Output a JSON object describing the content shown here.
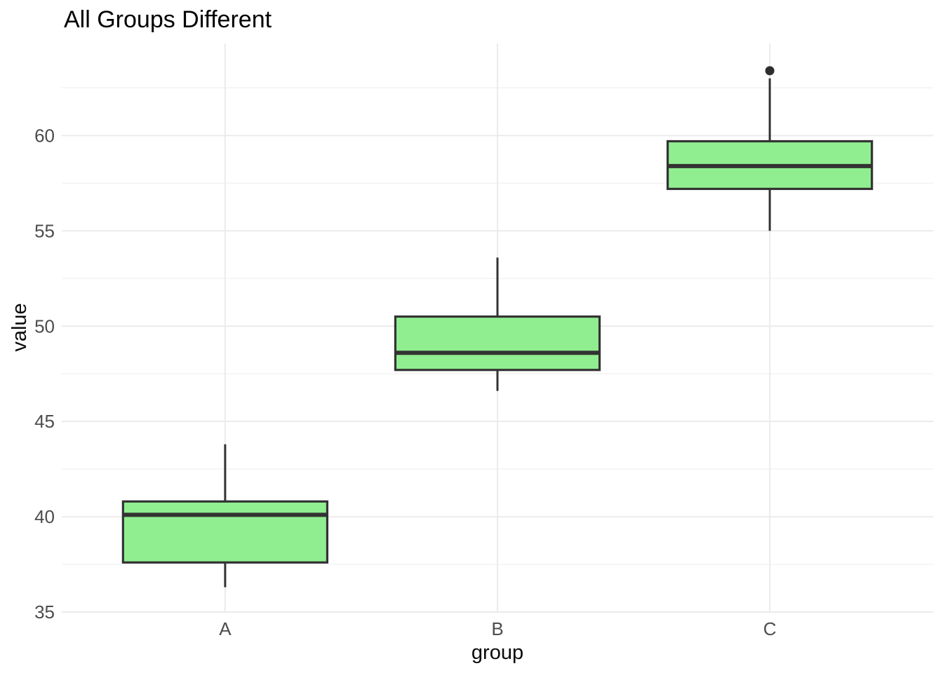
{
  "chart_data": {
    "type": "boxplot",
    "title": "All Groups Different",
    "xlabel": "group",
    "ylabel": "value",
    "categories": [
      "A",
      "B",
      "C"
    ],
    "series": [
      {
        "group": "A",
        "whisker_low": 36.3,
        "q1": 37.6,
        "median": 40.1,
        "q3": 40.8,
        "whisker_high": 43.8,
        "outliers": []
      },
      {
        "group": "B",
        "whisker_low": 46.6,
        "q1": 47.7,
        "median": 48.6,
        "q3": 50.5,
        "whisker_high": 53.6,
        "outliers": []
      },
      {
        "group": "C",
        "whisker_low": 55.0,
        "q1": 57.2,
        "median": 58.4,
        "q3": 59.7,
        "whisker_high": 63.0,
        "outliers": [
          63.4
        ]
      }
    ],
    "y_ticks": [
      35,
      40,
      45,
      50,
      55,
      60
    ],
    "y_minor_ticks": [
      37.5,
      42.5,
      47.5,
      52.5,
      57.5,
      62.5
    ],
    "ylim": [
      35,
      64.83
    ],
    "grid": "on",
    "legend": "none",
    "colors": {
      "box_fill": "#90EE90",
      "box_stroke": "#333333",
      "median": "#333333",
      "whisker": "#333333",
      "outlier": "#2E2E2E",
      "grid_major": "#EBEBEB",
      "grid_minor": "#F0F0F0",
      "tick_text": "#4D4D4D",
      "title_text": "#000000",
      "background": "#FFFFFF"
    }
  }
}
